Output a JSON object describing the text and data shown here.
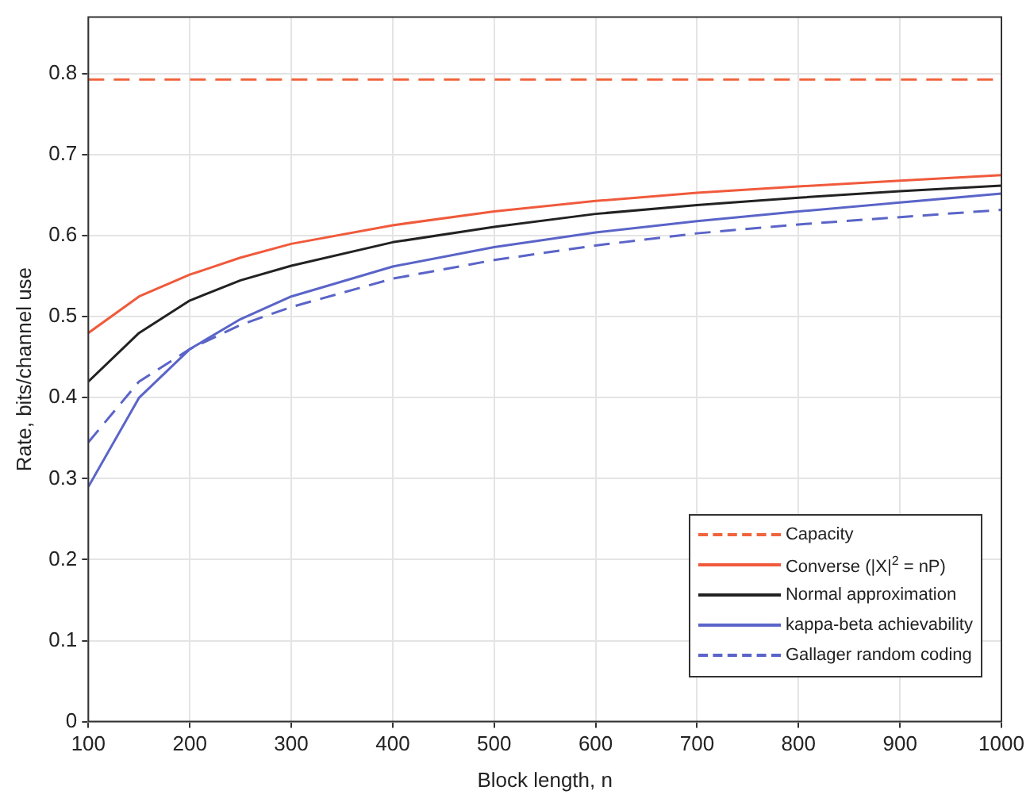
{
  "chart_data": {
    "type": "line",
    "xlabel": "Block length, n",
    "ylabel": "Rate, bits/channel use",
    "x": [
      100,
      150,
      200,
      250,
      300,
      400,
      500,
      600,
      700,
      800,
      900,
      1000
    ],
    "xlim": [
      100,
      1000
    ],
    "xticks": [
      100,
      200,
      300,
      400,
      500,
      600,
      700,
      800,
      900,
      1000
    ],
    "ylim": [
      0,
      0.87
    ],
    "yticks": [
      0,
      0.1,
      0.2,
      0.3,
      0.4,
      0.5,
      0.6,
      0.7,
      0.8
    ],
    "grid": true,
    "legend": "bottom right",
    "marker": "none",
    "series": [
      {
        "name": "Capacity",
        "color": "#f0643c",
        "line_style": "dashed",
        "values": [
          0.793,
          0.793,
          0.793,
          0.793,
          0.793,
          0.793,
          0.793,
          0.793,
          0.793,
          0.793,
          0.793,
          0.793
        ]
      },
      {
        "name": "Converse (|X|$^{2}$ = nP)",
        "color": "#f05a3c",
        "line_style": "solid",
        "values": [
          0.48,
          0.525,
          0.552,
          0.573,
          0.59,
          0.613,
          0.63,
          0.643,
          0.653,
          0.661,
          0.668,
          0.675
        ]
      },
      {
        "name": "Normal approximation",
        "color": "#222222",
        "line_style": "solid",
        "values": [
          0.42,
          0.48,
          0.52,
          0.545,
          0.563,
          0.592,
          0.611,
          0.627,
          0.638,
          0.647,
          0.655,
          0.662
        ]
      },
      {
        "name": "kappa-beta achievability",
        "color": "#5a64c8",
        "line_style": "solid",
        "values": [
          0.29,
          0.4,
          0.46,
          0.497,
          0.525,
          0.562,
          0.586,
          0.604,
          0.618,
          0.63,
          0.641,
          0.652
        ]
      },
      {
        "name": "Gallager random coding",
        "color": "#5a64c8",
        "line_style": "dashed",
        "values": [
          0.345,
          0.42,
          0.46,
          0.49,
          0.512,
          0.547,
          0.57,
          0.588,
          0.603,
          0.614,
          0.623,
          0.632
        ]
      }
    ]
  }
}
